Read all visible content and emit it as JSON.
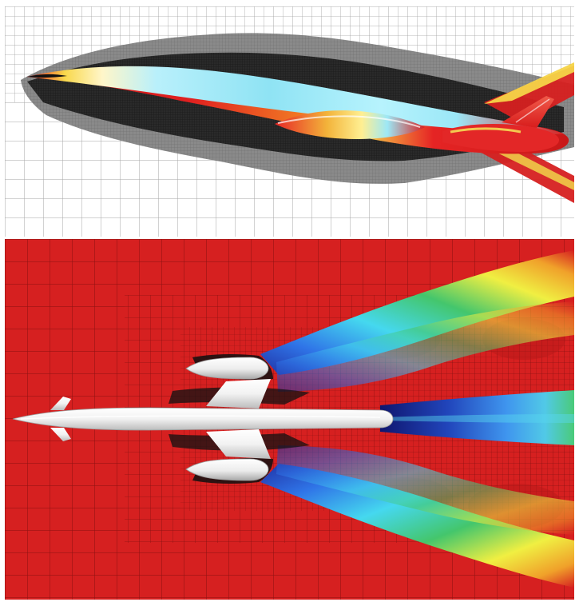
{
  "figure": {
    "panels": [
      {
        "id": "top",
        "content": "side-view-surface-colormap-on-adaptive-mesh"
      },
      {
        "id": "bottom",
        "content": "top-view-flowfield-colormap-on-adaptive-mesh"
      }
    ],
    "colors": {
      "background_field": "#d62020",
      "mesh_line": "#7a0d0d",
      "grid_white": "#ffffff",
      "grid_line_light": "#9a9a9a",
      "refinement_gray": "#7b7b7b",
      "refinement_dark": "#2b2b2b",
      "cyan": "#7fe1f2",
      "blue": "#2b5fd8",
      "dark_blue": "#14228a",
      "green": "#31c67d",
      "yellow": "#f4e43a",
      "orange": "#f08a22",
      "aircraft_white": "#f2f2f2"
    }
  }
}
